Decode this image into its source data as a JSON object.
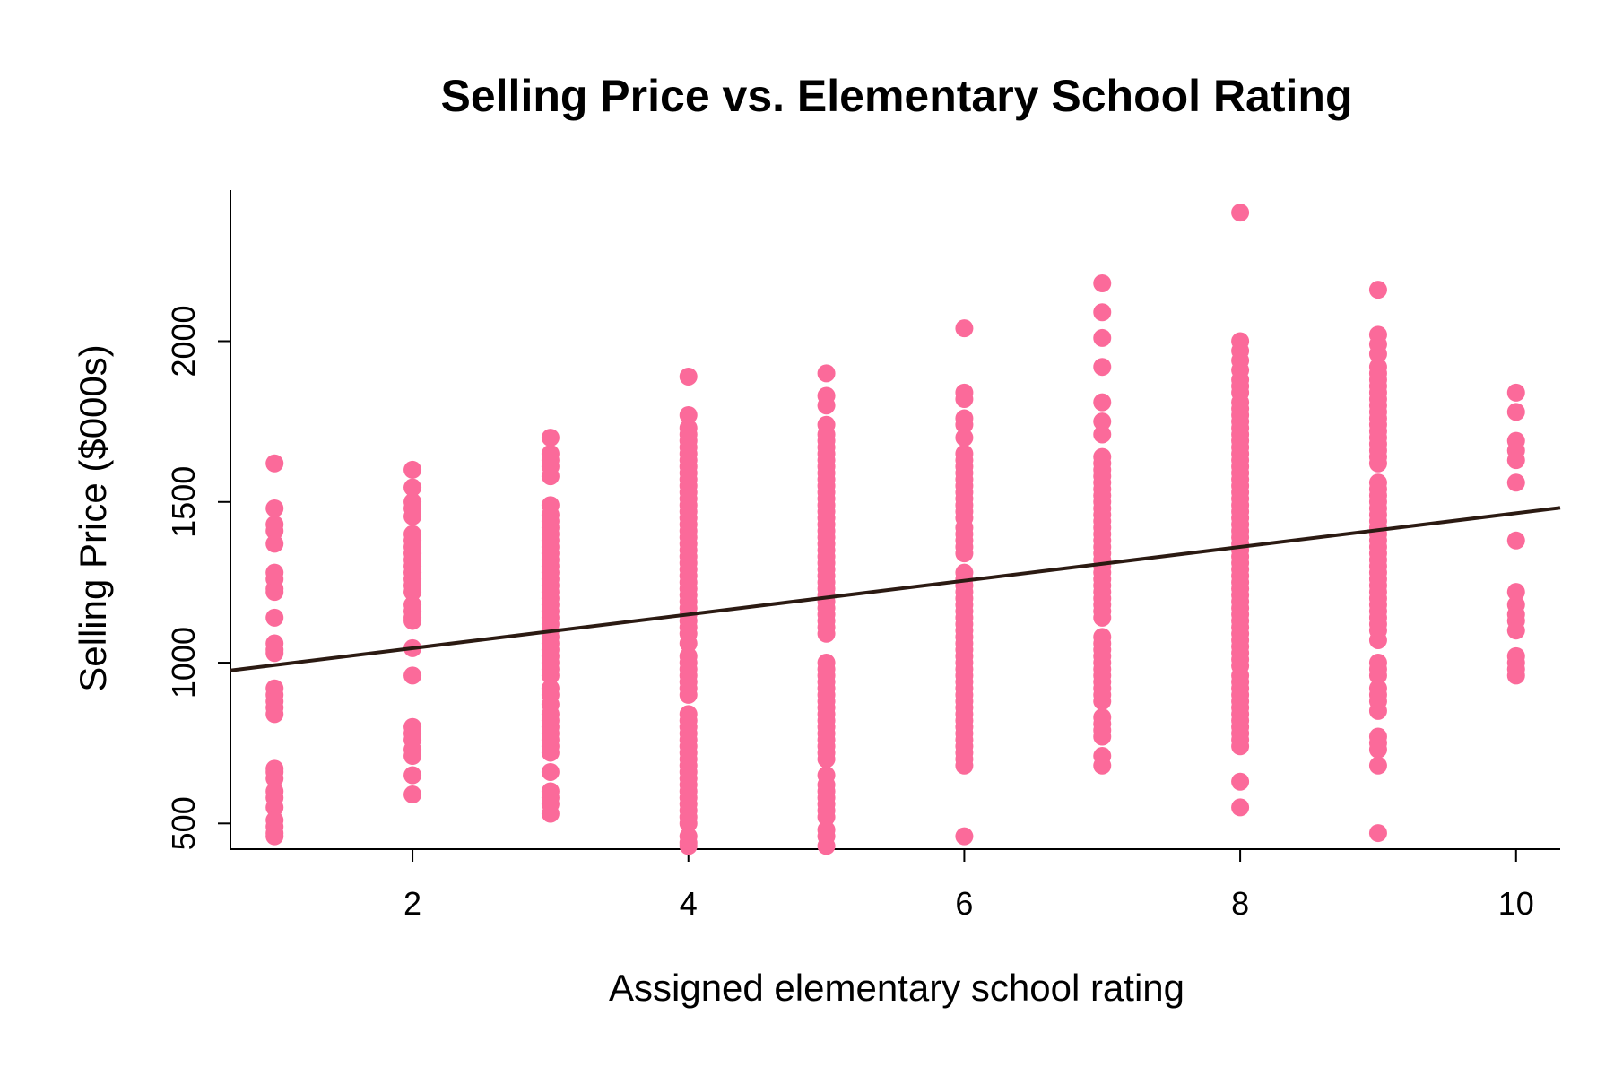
{
  "chart_data": {
    "type": "scatter",
    "title": "Selling Price vs. Elementary School Rating",
    "xlabel": "Assigned elementary school rating",
    "ylabel": "Selling Price ($000s)",
    "xlim": [
      0.68,
      10.32
    ],
    "ylim": [
      420,
      2470
    ],
    "x_ticks": [
      2,
      4,
      6,
      8,
      10
    ],
    "x_tick_labels": [
      "2",
      "4",
      "6",
      "8",
      "10"
    ],
    "y_ticks": [
      500,
      1000,
      1500,
      2000
    ],
    "y_tick_labels": [
      "500",
      "1000",
      "1500",
      "2000"
    ],
    "grid": false,
    "legend": "none",
    "point_color": "#fb6a9a",
    "line_color": "#2b1a12",
    "regression_line": {
      "intercept": 940,
      "slope": 52.5
    },
    "points_by_rating": [
      {
        "x": 1,
        "y": [
          1620,
          1480,
          1430,
          1410,
          1370,
          1280,
          1260,
          1230,
          1220,
          1140,
          1060,
          1040,
          1030,
          920,
          900,
          880,
          860,
          840,
          670,
          660,
          640,
          600,
          580,
          550,
          510,
          490,
          470,
          460
        ]
      },
      {
        "x": 2,
        "y": [
          1600,
          1545,
          1500,
          1480,
          1455,
          1400,
          1380,
          1360,
          1340,
          1320,
          1300,
          1280,
          1260,
          1240,
          1220,
          1180,
          1160,
          1140,
          1130,
          1045,
          960,
          800,
          780,
          760,
          730,
          710,
          650,
          590
        ]
      },
      {
        "x": 3,
        "y": [
          1700,
          1650,
          1630,
          1610,
          1580,
          1490,
          1460,
          1440,
          1420,
          1400,
          1380,
          1360,
          1340,
          1320,
          1300,
          1280,
          1260,
          1240,
          1220,
          1200,
          1180,
          1160,
          1140,
          1120,
          1100,
          1080,
          1060,
          1040,
          1020,
          1000,
          980,
          960,
          920,
          900,
          870,
          840,
          820,
          800,
          780,
          760,
          740,
          720,
          660,
          600,
          580,
          560,
          530
        ]
      },
      {
        "x": 4,
        "y": [
          1890,
          1770,
          1730,
          1710,
          1690,
          1670,
          1650,
          1630,
          1610,
          1590,
          1570,
          1550,
          1530,
          1510,
          1490,
          1470,
          1450,
          1430,
          1410,
          1390,
          1370,
          1350,
          1330,
          1310,
          1290,
          1270,
          1250,
          1230,
          1210,
          1190,
          1170,
          1150,
          1130,
          1110,
          1090,
          1060,
          1020,
          1000,
          980,
          960,
          940,
          920,
          900,
          840,
          820,
          800,
          780,
          760,
          740,
          720,
          700,
          680,
          660,
          640,
          620,
          600,
          580,
          560,
          540,
          520,
          500,
          460,
          440,
          430
        ]
      },
      {
        "x": 5,
        "y": [
          1900,
          1830,
          1800,
          1740,
          1710,
          1690,
          1670,
          1650,
          1630,
          1610,
          1590,
          1570,
          1550,
          1530,
          1510,
          1490,
          1470,
          1450,
          1430,
          1410,
          1390,
          1370,
          1350,
          1330,
          1310,
          1290,
          1270,
          1250,
          1230,
          1210,
          1190,
          1170,
          1150,
          1130,
          1110,
          1090,
          1000,
          980,
          960,
          940,
          920,
          900,
          880,
          860,
          840,
          820,
          800,
          780,
          760,
          740,
          720,
          700,
          650,
          620,
          600,
          580,
          560,
          540,
          520,
          480,
          460,
          430
        ]
      },
      {
        "x": 6,
        "y": [
          2040,
          1840,
          1820,
          1760,
          1740,
          1700,
          1650,
          1630,
          1610,
          1590,
          1570,
          1550,
          1530,
          1510,
          1490,
          1470,
          1450,
          1420,
          1400,
          1380,
          1360,
          1340,
          1280,
          1260,
          1240,
          1220,
          1200,
          1180,
          1160,
          1140,
          1120,
          1100,
          1080,
          1060,
          1040,
          1020,
          1000,
          980,
          960,
          940,
          920,
          900,
          880,
          860,
          840,
          820,
          800,
          780,
          760,
          740,
          720,
          700,
          680,
          460
        ]
      },
      {
        "x": 7,
        "y": [
          2180,
          2090,
          2010,
          1920,
          1810,
          1750,
          1710,
          1640,
          1620,
          1600,
          1580,
          1560,
          1540,
          1520,
          1500,
          1480,
          1460,
          1440,
          1420,
          1400,
          1380,
          1360,
          1340,
          1320,
          1300,
          1280,
          1260,
          1240,
          1220,
          1200,
          1180,
          1160,
          1140,
          1080,
          1060,
          1040,
          1020,
          1000,
          980,
          960,
          940,
          920,
          900,
          880,
          830,
          810,
          790,
          770,
          710,
          680
        ]
      },
      {
        "x": 8,
        "y": [
          2400,
          2000,
          1970,
          1940,
          1910,
          1880,
          1860,
          1840,
          1810,
          1790,
          1770,
          1750,
          1730,
          1710,
          1690,
          1670,
          1650,
          1630,
          1610,
          1590,
          1570,
          1550,
          1530,
          1510,
          1490,
          1470,
          1450,
          1430,
          1410,
          1390,
          1370,
          1350,
          1330,
          1310,
          1290,
          1270,
          1250,
          1230,
          1210,
          1190,
          1170,
          1150,
          1130,
          1110,
          1090,
          1070,
          1050,
          1030,
          1010,
          990,
          960,
          940,
          920,
          900,
          880,
          860,
          840,
          820,
          800,
          780,
          760,
          740,
          630,
          550
        ]
      },
      {
        "x": 9,
        "y": [
          2160,
          2020,
          1990,
          1960,
          1920,
          1900,
          1880,
          1860,
          1840,
          1820,
          1800,
          1780,
          1760,
          1740,
          1720,
          1700,
          1680,
          1660,
          1640,
          1620,
          1560,
          1540,
          1520,
          1500,
          1480,
          1460,
          1440,
          1420,
          1400,
          1380,
          1360,
          1340,
          1320,
          1300,
          1280,
          1260,
          1240,
          1220,
          1200,
          1180,
          1160,
          1140,
          1120,
          1100,
          1070,
          1000,
          980,
          960,
          920,
          900,
          880,
          850,
          770,
          750,
          730,
          680,
          470
        ]
      },
      {
        "x": 10,
        "y": [
          1840,
          1780,
          1690,
          1660,
          1630,
          1560,
          1380,
          1220,
          1180,
          1150,
          1130,
          1100,
          1020,
          1000,
          980,
          960
        ]
      }
    ]
  }
}
